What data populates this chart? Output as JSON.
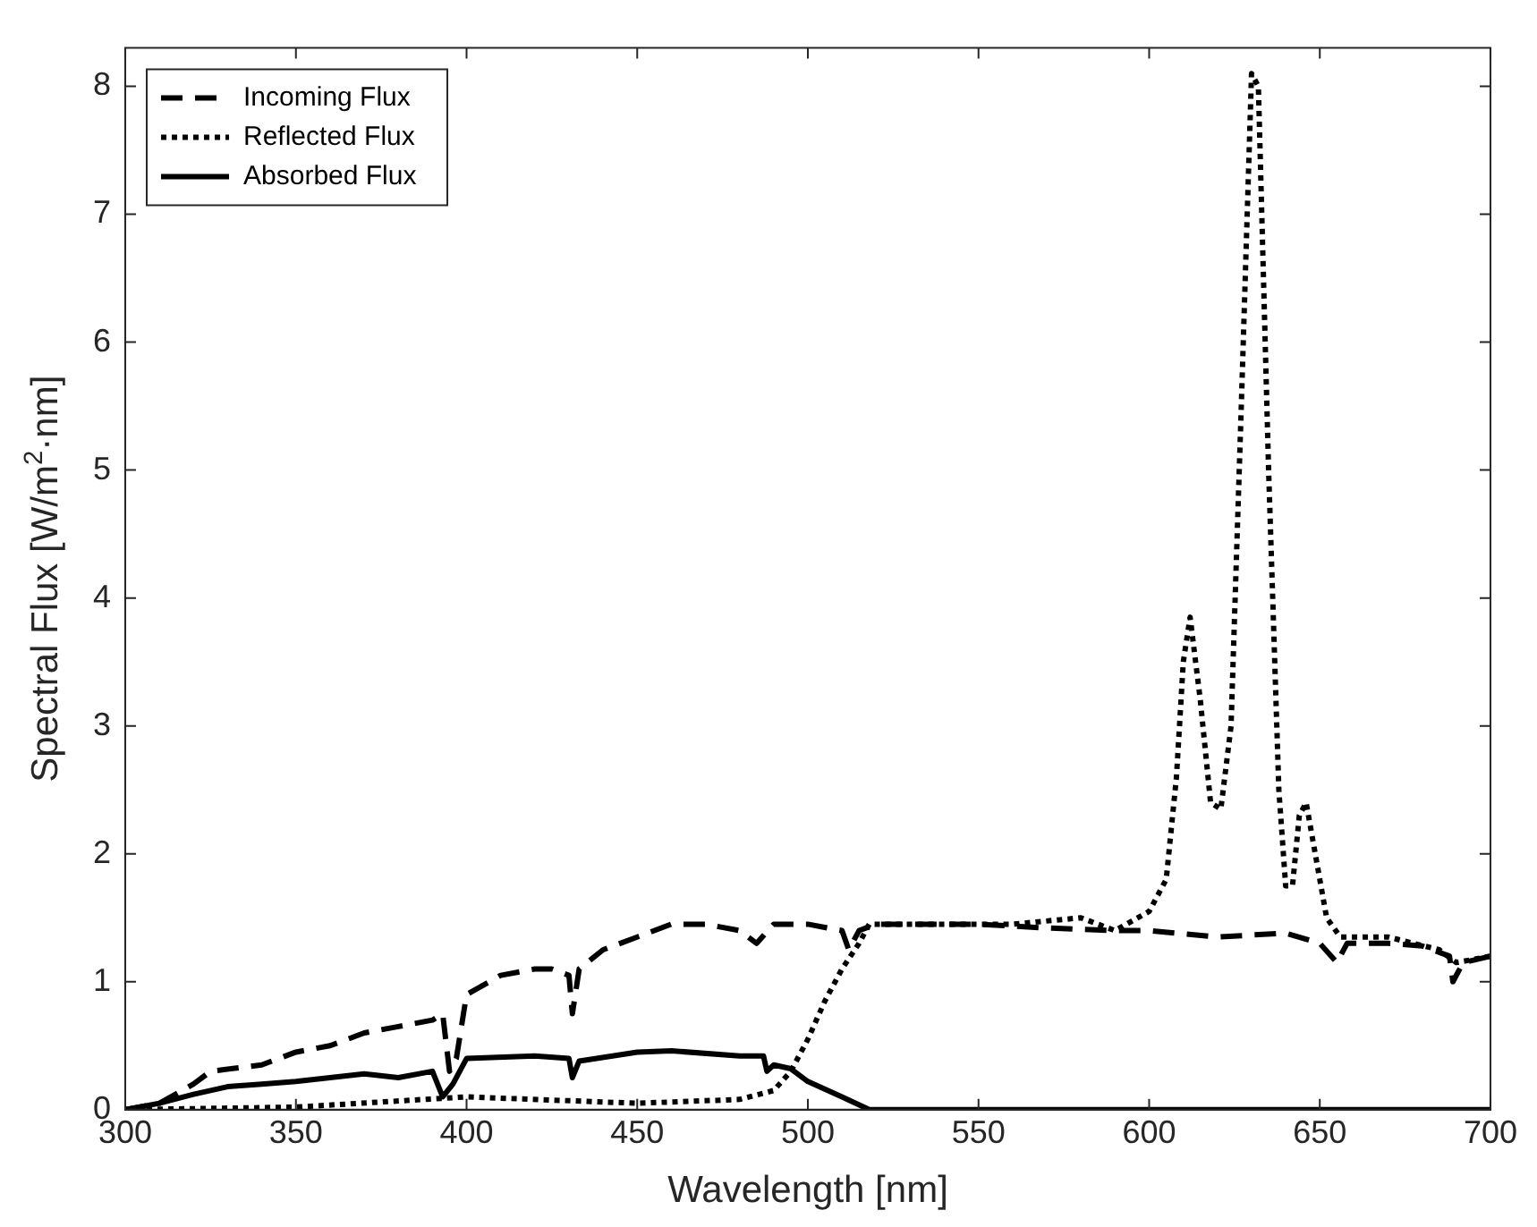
{
  "chart_data": {
    "type": "line",
    "xlabel": "Wavelength [nm]",
    "ylabel": "Spectral Flux [W/m$^{2}$·nm]",
    "xlim": [
      300,
      700
    ],
    "ylim": [
      0,
      8.3
    ],
    "xticks": [
      300,
      350,
      400,
      450,
      500,
      550,
      600,
      650,
      700
    ],
    "yticks": [
      0,
      1,
      2,
      3,
      4,
      5,
      6,
      7,
      8
    ],
    "grid": false,
    "legend": "top left",
    "marker": "none",
    "series": [
      {
        "name": "Incoming Flux",
        "color": "#000000",
        "line_style": "dashed",
        "x": [
          300,
          310,
          320,
          325,
          340,
          350,
          360,
          370,
          380,
          390,
          393,
          395,
          397,
          400,
          410,
          420,
          425,
          430,
          431,
          433,
          440,
          450,
          460,
          470,
          480,
          485,
          490,
          500,
          510,
          512,
          515,
          520,
          530,
          550,
          570,
          590,
          600,
          620,
          640,
          650,
          655,
          658,
          670,
          680,
          688,
          689,
          692,
          700
        ],
        "values": [
          0,
          0.05,
          0.2,
          0.3,
          0.35,
          0.45,
          0.5,
          0.6,
          0.65,
          0.7,
          0.75,
          0.3,
          0.4,
          0.9,
          1.05,
          1.1,
          1.1,
          1.05,
          0.75,
          1.1,
          1.25,
          1.35,
          1.45,
          1.45,
          1.4,
          1.3,
          1.45,
          1.45,
          1.4,
          1.25,
          1.4,
          1.45,
          1.45,
          1.45,
          1.42,
          1.4,
          1.4,
          1.35,
          1.38,
          1.3,
          1.15,
          1.3,
          1.3,
          1.28,
          1.2,
          1.0,
          1.15,
          1.2
        ]
      },
      {
        "name": "Reflected Flux",
        "color": "#000000",
        "line_style": "dotted",
        "x": [
          300,
          350,
          400,
          450,
          480,
          490,
          495,
          500,
          505,
          510,
          515,
          518,
          530,
          560,
          580,
          590,
          600,
          605,
          608,
          610,
          612,
          615,
          618,
          621,
          624,
          627,
          630,
          632,
          635,
          638,
          640,
          642,
          644,
          646,
          648,
          652,
          656,
          670,
          685,
          690,
          700
        ],
        "values": [
          0,
          0.02,
          0.1,
          0.05,
          0.08,
          0.15,
          0.3,
          0.55,
          0.85,
          1.1,
          1.3,
          1.45,
          1.45,
          1.45,
          1.5,
          1.4,
          1.55,
          1.8,
          2.6,
          3.5,
          3.85,
          3.2,
          2.4,
          2.35,
          3.0,
          5.5,
          8.1,
          8.0,
          5.0,
          2.5,
          1.75,
          1.75,
          2.3,
          2.4,
          2.1,
          1.5,
          1.35,
          1.35,
          1.25,
          1.15,
          1.2
        ]
      },
      {
        "name": "Absorbed Flux",
        "color": "#000000",
        "line_style": "solid",
        "x": [
          300,
          310,
          320,
          330,
          340,
          350,
          360,
          370,
          380,
          390,
          393,
          396,
          398,
          400,
          420,
          430,
          431,
          433,
          450,
          460,
          480,
          487,
          488,
          490,
          495,
          500,
          510,
          518,
          700
        ],
        "values": [
          0,
          0.05,
          0.12,
          0.18,
          0.2,
          0.22,
          0.25,
          0.28,
          0.25,
          0.3,
          0.1,
          0.2,
          0.3,
          0.4,
          0.42,
          0.4,
          0.25,
          0.38,
          0.45,
          0.46,
          0.42,
          0.42,
          0.3,
          0.35,
          0.32,
          0.22,
          0.1,
          0,
          0
        ]
      }
    ]
  }
}
